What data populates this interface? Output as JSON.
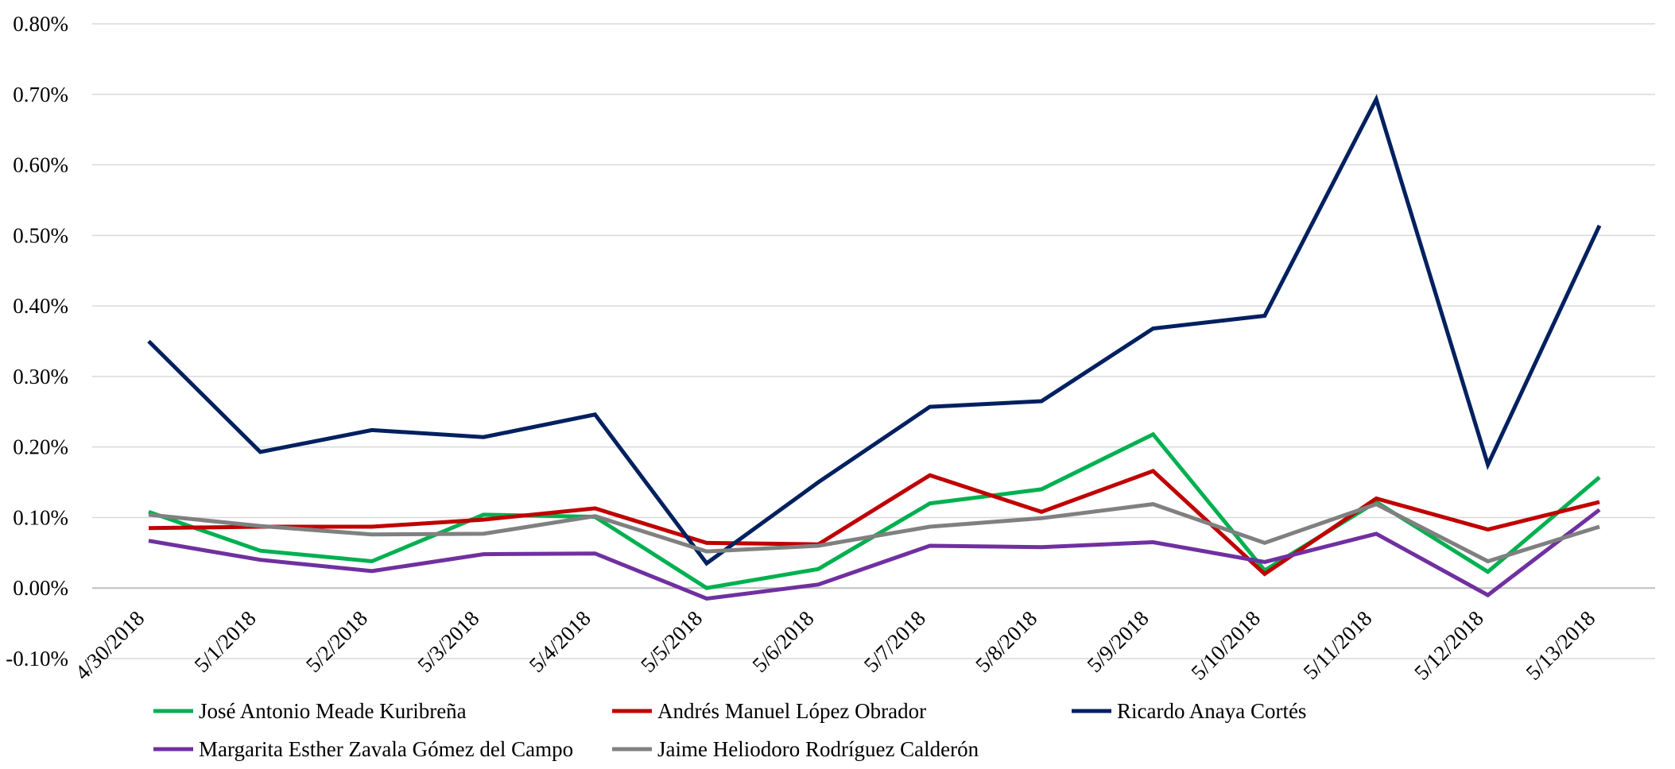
{
  "chart_data": {
    "type": "line",
    "title": "",
    "xlabel": "",
    "ylabel": "",
    "ylim": [
      -0.001,
      0.008
    ],
    "yticks": [
      -0.001,
      0.0,
      0.001,
      0.002,
      0.003,
      0.004,
      0.005,
      0.006,
      0.007,
      0.008
    ],
    "ytick_labels": [
      "-0.10%",
      "0.00%",
      "0.10%",
      "0.20%",
      "0.30%",
      "0.40%",
      "0.50%",
      "0.60%",
      "0.70%",
      "0.80%"
    ],
    "grid": "horizontal",
    "legend_position": "bottom",
    "categories": [
      "4/30/2018",
      "5/1/2018",
      "5/2/2018",
      "5/3/2018",
      "5/4/2018",
      "5/5/2018",
      "5/6/2018",
      "5/7/2018",
      "5/8/2018",
      "5/9/2018",
      "5/10/2018",
      "5/11/2018",
      "5/12/2018",
      "5/13/2018"
    ],
    "series": [
      {
        "name": "José Antonio Meade Kuribreña",
        "color": "#00b050",
        "values": [
          0.00108,
          0.00053,
          0.00038,
          0.00104,
          0.00101,
          0.0,
          0.00027,
          0.0012,
          0.0014,
          0.00218,
          0.00025,
          0.00122,
          0.00023,
          0.00157
        ]
      },
      {
        "name": "Andrés Manuel López Obrador",
        "color": "#c00000",
        "values": [
          0.00085,
          0.00087,
          0.00087,
          0.00097,
          0.00113,
          0.00064,
          0.00062,
          0.0016,
          0.00108,
          0.00166,
          0.0002,
          0.00127,
          0.00083,
          0.00122
        ]
      },
      {
        "name": "Ricardo Anaya Cortés",
        "color": "#002060",
        "values": [
          0.0035,
          0.00193,
          0.00224,
          0.00214,
          0.00246,
          0.00035,
          0.0015,
          0.00257,
          0.00265,
          0.00368,
          0.00386,
          0.00693,
          0.00175,
          0.00514
        ]
      },
      {
        "name": "Margarita Esther Zavala Gómez del Campo",
        "color": "#7030a0",
        "values": [
          0.00067,
          0.0004,
          0.00024,
          0.00048,
          0.00049,
          -0.00015,
          5e-05,
          0.0006,
          0.00058,
          0.00065,
          0.00037,
          0.00077,
          -0.0001,
          0.00111
        ]
      },
      {
        "name": "Jaime Heliodoro Rodríguez Calderón",
        "color": "#808080",
        "values": [
          0.00104,
          0.00088,
          0.00076,
          0.00077,
          0.00102,
          0.00052,
          0.0006,
          0.00087,
          0.00099,
          0.00119,
          0.00064,
          0.00119,
          0.00038,
          0.00087
        ]
      }
    ]
  }
}
